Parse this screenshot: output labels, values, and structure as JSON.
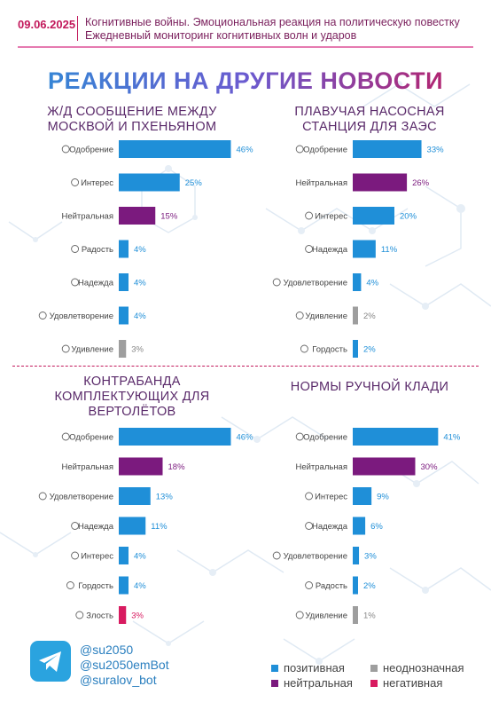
{
  "header": {
    "date": "09.06.2025",
    "line1": "Когнитивные войны. Эмоциональная реакция на политическую повестку",
    "line2": "Ежедневный мониторинг когнитивных волн и ударов"
  },
  "main_title": "РЕАКЦИИ НА ДРУГИЕ НОВОСТИ",
  "colors": {
    "positive": "#1f8fd8",
    "neutral": "#7b1a7e",
    "ambiguous": "#9e9e9e",
    "negative": "#d81b60"
  },
  "chart_data": [
    {
      "type": "bar",
      "title": "Ж/Д СООБЩЕНИЕ МЕЖДУ МОСКВОЙ И ПХЕНЬЯНОМ",
      "title_lines": [
        "Ж/Д СООБЩЕНИЕ МЕЖДУ",
        "МОСКВОЙ И ПХЕНЬЯНОМ"
      ],
      "categories": [
        "Одобрение",
        "Интерес",
        "Нейтральная",
        "Радость",
        "Надежда",
        "Удовлетворение",
        "Удивление"
      ],
      "values": [
        46,
        25,
        15,
        4,
        4,
        4,
        3
      ],
      "labels": [
        "46%",
        "25%",
        "15%",
        "4%",
        "4%",
        "4%",
        "3%"
      ],
      "kinds": [
        "positive",
        "positive",
        "neutral",
        "positive",
        "positive",
        "positive",
        "ambiguous"
      ]
    },
    {
      "type": "bar",
      "title": "ПЛАВУЧАЯ НАСОСНАЯ СТАНЦИЯ ДЛЯ ЗАЭС",
      "title_lines": [
        "ПЛАВУЧАЯ НАСОСНАЯ",
        "СТАНЦИЯ ДЛЯ ЗАЭС"
      ],
      "categories": [
        "Одобрение",
        "Нейтральная",
        "Интерес",
        "Надежда",
        "Удовлетворение",
        "Удивление",
        "Гордость"
      ],
      "values": [
        33,
        26,
        20,
        11,
        4,
        2,
        2
      ],
      "labels": [
        "33%",
        "26%",
        "20%",
        "11%",
        "4%",
        "2%",
        "2%"
      ],
      "kinds": [
        "positive",
        "neutral",
        "positive",
        "positive",
        "positive",
        "ambiguous",
        "positive"
      ]
    },
    {
      "type": "bar",
      "title": "КОНТРАБАНДА КОМПЛЕКТУЮЩИХ ДЛЯ ВЕРТОЛЁТОВ",
      "title_lines": [
        "КОНТРАБАНДА",
        "КОМПЛЕКТУЮЩИХ ДЛЯ",
        "ВЕРТОЛЁТОВ"
      ],
      "categories": [
        "Одобрение",
        "Нейтральная",
        "Удовлетворение",
        "Надежда",
        "Интерес",
        "Гордость",
        "Злость"
      ],
      "values": [
        46,
        18,
        13,
        11,
        4,
        4,
        3
      ],
      "labels": [
        "46%",
        "18%",
        "13%",
        "11%",
        "4%",
        "4%",
        "3%"
      ],
      "kinds": [
        "positive",
        "neutral",
        "positive",
        "positive",
        "positive",
        "positive",
        "negative"
      ]
    },
    {
      "type": "bar",
      "title": "НОРМЫ РУЧНОЙ КЛАДИ",
      "title_lines": [
        "НОРМЫ РУЧНОЙ КЛАДИ"
      ],
      "categories": [
        "Одобрение",
        "Нейтральная",
        "Интерес",
        "Надежда",
        "Удовлетворение",
        "Радость",
        "Удивление"
      ],
      "values": [
        41,
        30,
        9,
        6,
        3,
        2,
        1
      ],
      "labels": [
        "41%",
        "30%",
        "9%",
        "6%",
        "3%",
        "2%",
        "1%"
      ],
      "kinds": [
        "positive",
        "neutral",
        "positive",
        "positive",
        "positive",
        "positive",
        "ambiguous"
      ]
    }
  ],
  "legend": {
    "positive": "позитивная",
    "neutral": "нейтральная",
    "ambiguous": "неоднозначная",
    "negative": "негативная"
  },
  "contacts": [
    "@su2050",
    "@su2050emBot",
    "@suralov_bot"
  ],
  "icons": [
    "telegram-icon"
  ]
}
